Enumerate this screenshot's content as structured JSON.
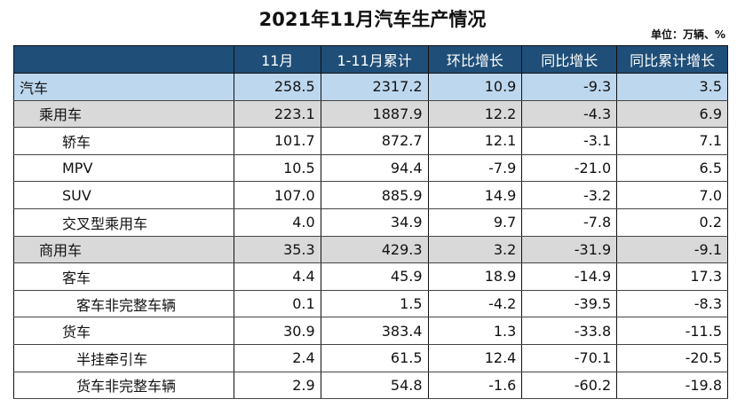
{
  "title": "2021年11月汽车生产情况",
  "unit": "单位：万辆、%",
  "headers": [
    "",
    "11月",
    "1-11月累计",
    "环比增长",
    "同比增长",
    "同比累计增长"
  ],
  "rows": [
    {
      "label": "汽车",
      "level": 0,
      "values": [
        "258.5",
        "2317.2",
        "10.9",
        "-9.3",
        "3.5"
      ]
    },
    {
      "label": "乘用车",
      "level": 1,
      "values": [
        "223.1",
        "1887.9",
        "12.2",
        "-4.3",
        "6.9"
      ]
    },
    {
      "label": "轿车",
      "level": 2,
      "values": [
        "101.7",
        "872.7",
        "12.1",
        "-3.1",
        "7.1"
      ]
    },
    {
      "label": "MPV",
      "level": 2,
      "values": [
        "10.5",
        "94.4",
        "-7.9",
        "-21.0",
        "6.5"
      ]
    },
    {
      "label": "SUV",
      "level": 2,
      "values": [
        "107.0",
        "885.9",
        "14.9",
        "-3.2",
        "7.0"
      ]
    },
    {
      "label": "交叉型乘用车",
      "level": 2,
      "values": [
        "4.0",
        "34.9",
        "9.7",
        "-7.8",
        "0.2"
      ]
    },
    {
      "label": "商用车",
      "level": 1,
      "values": [
        "35.3",
        "429.3",
        "3.2",
        "-31.9",
        "-9.1"
      ]
    },
    {
      "label": "客车",
      "level": 2,
      "values": [
        "4.4",
        "45.9",
        "18.9",
        "-14.9",
        "17.3"
      ]
    },
    {
      "label": "客车非完整车辆",
      "level": 3,
      "values": [
        "0.1",
        "1.5",
        "-4.2",
        "-39.5",
        "-8.3"
      ]
    },
    {
      "label": "货车",
      "level": 2,
      "values": [
        "30.9",
        "383.4",
        "1.3",
        "-33.8",
        "-11.5"
      ]
    },
    {
      "label": "半挂牵引车",
      "level": 3,
      "values": [
        "2.4",
        "61.5",
        "12.4",
        "-70.1",
        "-20.5"
      ]
    },
    {
      "label": "货车非完整车辆",
      "level": 3,
      "values": [
        "2.9",
        "54.8",
        "-1.6",
        "-60.2",
        "-19.8"
      ]
    }
  ],
  "colors": {
    "header": "#1f4e78",
    "total_row": "#bdd7ee",
    "category_row": "#d9d9d9"
  }
}
